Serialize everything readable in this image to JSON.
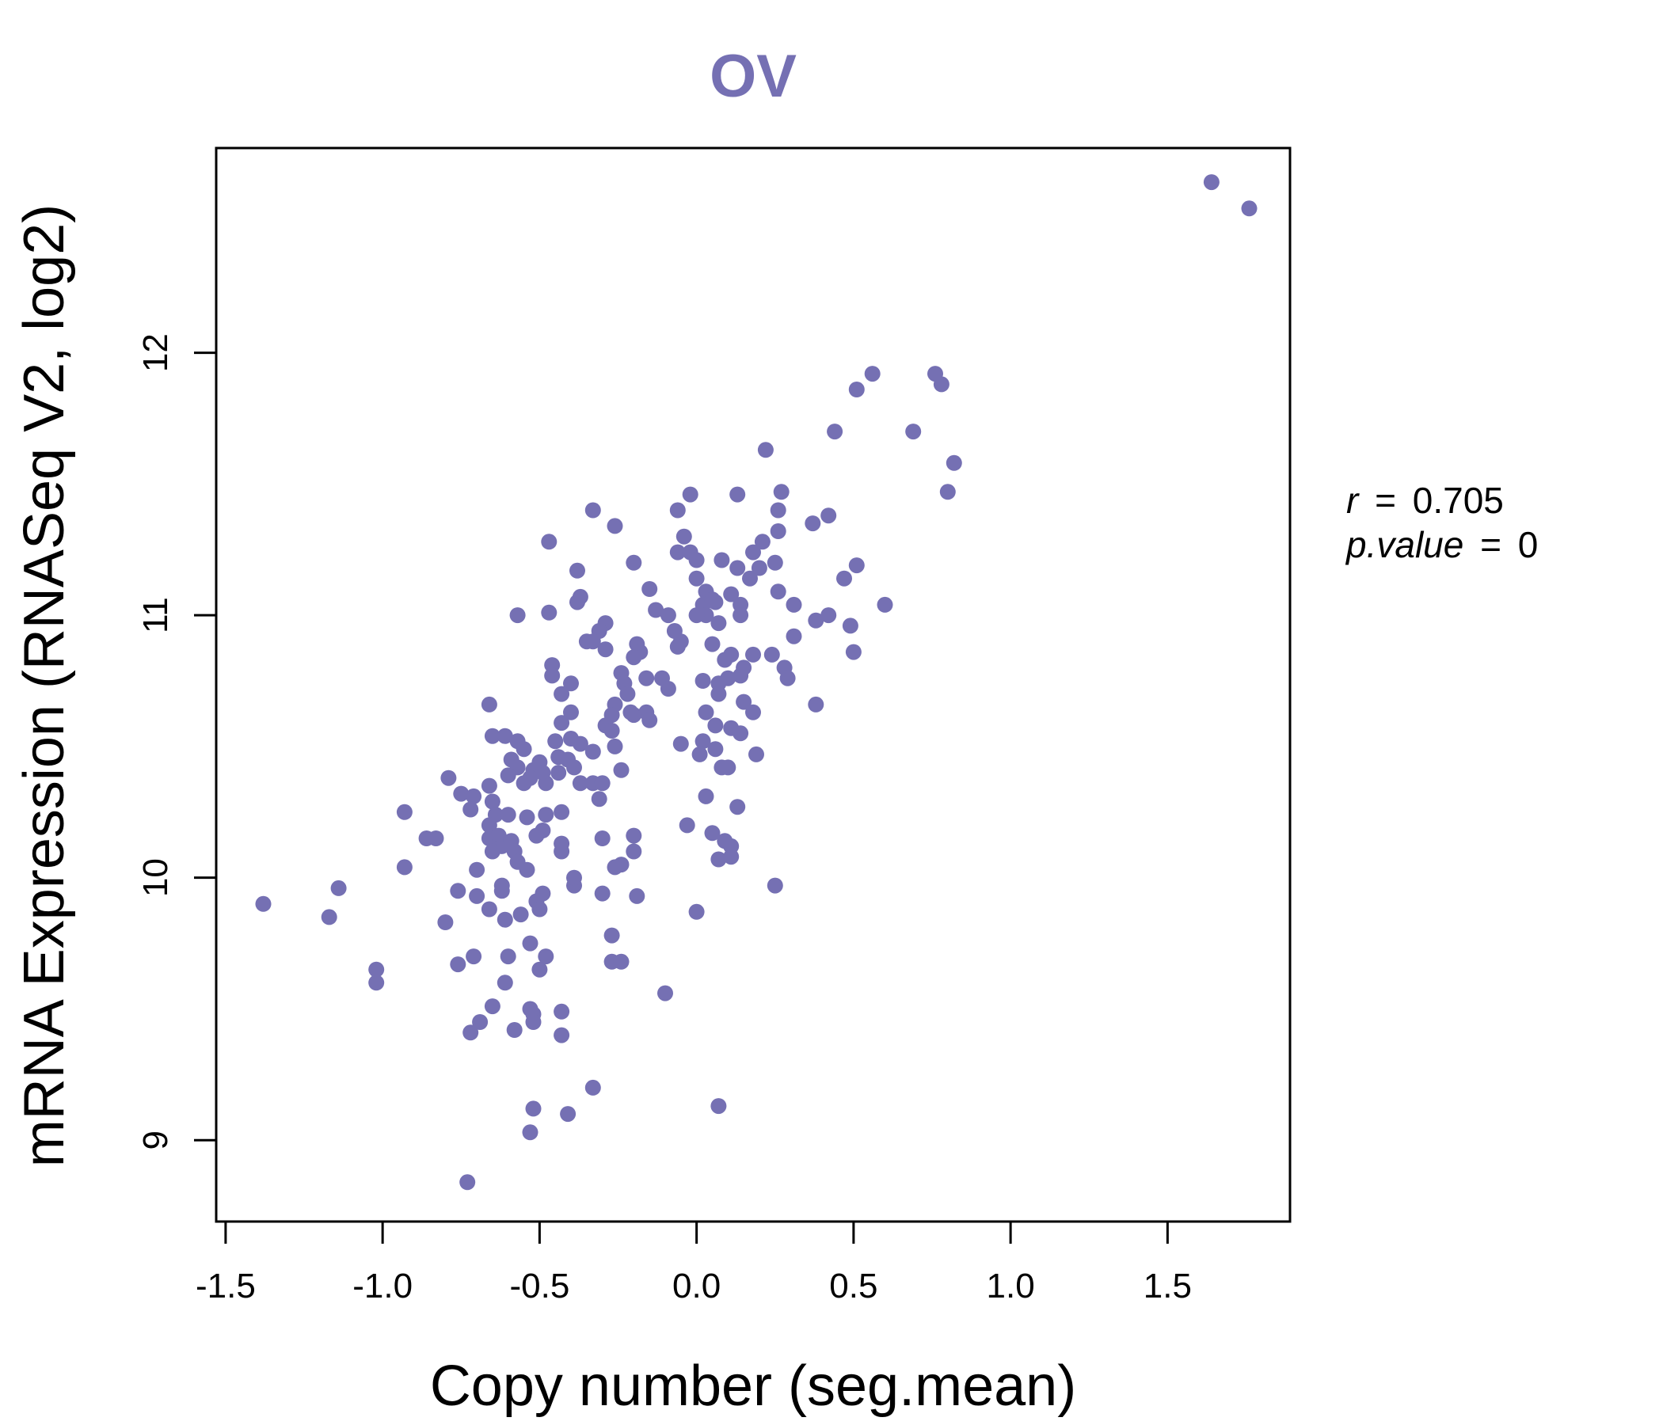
{
  "colors": {
    "accent": "#7570b3",
    "axis": "#000000"
  },
  "chart_data": {
    "type": "scatter",
    "title": "OV",
    "xlabel": "Copy number (seg.mean)",
    "ylabel": "mRNA Expression (RNASeq V2, log2)",
    "xlim": [
      -1.53,
      1.89
    ],
    "ylim": [
      8.69,
      12.78
    ],
    "xticks": [
      -1.5,
      -1.0,
      -0.5,
      0.0,
      0.5,
      1.0,
      1.5
    ],
    "xtick_labels": [
      "-1.5",
      "-1.0",
      "-0.5",
      "0.0",
      "0.5",
      "1.0",
      "1.5"
    ],
    "yticks": [
      9,
      10,
      11,
      12
    ],
    "ytick_labels": [
      "9",
      "10",
      "11",
      "12"
    ],
    "annotation": {
      "r_label": "r",
      "r_value": "0.705",
      "p_label": "p.value",
      "p_value": "0",
      "eq": "="
    },
    "points": [
      [
        1.64,
        12.65
      ],
      [
        1.76,
        12.55
      ],
      [
        0.56,
        11.92
      ],
      [
        0.51,
        11.86
      ],
      [
        0.76,
        11.92
      ],
      [
        0.78,
        11.88
      ],
      [
        0.44,
        11.7
      ],
      [
        0.69,
        11.7
      ],
      [
        0.22,
        11.63
      ],
      [
        0.82,
        11.58
      ],
      [
        0.8,
        11.47
      ],
      [
        0.27,
        11.47
      ],
      [
        0.13,
        11.46
      ],
      [
        0.42,
        11.38
      ],
      [
        0.37,
        11.35
      ],
      [
        0.26,
        11.4
      ],
      [
        0.26,
        11.32
      ],
      [
        0.21,
        11.28
      ],
      [
        0.18,
        11.24
      ],
      [
        0.25,
        11.2
      ],
      [
        0.51,
        11.19
      ],
      [
        0.47,
        11.14
      ],
      [
        0.17,
        11.14
      ],
      [
        0.2,
        11.18
      ],
      [
        0.13,
        11.18
      ],
      [
        0.11,
        11.08
      ],
      [
        0.26,
        11.09
      ],
      [
        0.08,
        11.21
      ],
      [
        0.06,
        11.05
      ],
      [
        0.14,
        11.04
      ],
      [
        0.14,
        11.0
      ],
      [
        0.31,
        11.04
      ],
      [
        0.38,
        10.98
      ],
      [
        0.42,
        11.0
      ],
      [
        0.49,
        10.96
      ],
      [
        0.6,
        11.04
      ],
      [
        0.31,
        10.92
      ],
      [
        0.5,
        10.86
      ],
      [
        -0.02,
        11.46
      ],
      [
        -0.06,
        11.4
      ],
      [
        -0.04,
        11.3
      ],
      [
        -0.06,
        11.24
      ],
      [
        -0.02,
        11.24
      ],
      [
        0.0,
        11.21
      ],
      [
        0.0,
        11.14
      ],
      [
        0.03,
        11.09
      ],
      [
        0.02,
        11.04
      ],
      [
        0.05,
        11.06
      ],
      [
        0.03,
        11.0
      ],
      [
        0.0,
        11.0
      ],
      [
        -0.09,
        11.0
      ],
      [
        -0.07,
        10.94
      ],
      [
        -0.06,
        10.88
      ],
      [
        -0.05,
        10.9
      ],
      [
        0.05,
        10.89
      ],
      [
        0.07,
        10.97
      ],
      [
        -0.33,
        11.4
      ],
      [
        -0.26,
        11.34
      ],
      [
        -0.47,
        11.28
      ],
      [
        -0.2,
        11.2
      ],
      [
        -0.38,
        11.17
      ],
      [
        -0.15,
        11.1
      ],
      [
        -0.37,
        11.07
      ],
      [
        -0.38,
        11.05
      ],
      [
        -0.47,
        11.01
      ],
      [
        -0.57,
        11.0
      ],
      [
        -0.29,
        10.97
      ],
      [
        -0.31,
        10.94
      ],
      [
        -0.35,
        10.9
      ],
      [
        -0.33,
        10.9
      ],
      [
        -0.29,
        10.87
      ],
      [
        -0.19,
        10.89
      ],
      [
        -0.18,
        10.86
      ],
      [
        -0.2,
        10.84
      ],
      [
        -0.13,
        11.02
      ],
      [
        0.11,
        10.85
      ],
      [
        0.09,
        10.83
      ],
      [
        0.15,
        10.8
      ],
      [
        0.18,
        10.85
      ],
      [
        0.24,
        10.85
      ],
      [
        0.28,
        10.8
      ],
      [
        0.29,
        10.76
      ],
      [
        0.14,
        10.77
      ],
      [
        0.1,
        10.76
      ],
      [
        0.07,
        10.74
      ],
      [
        0.07,
        10.7
      ],
      [
        0.02,
        10.75
      ],
      [
        0.15,
        10.67
      ],
      [
        0.18,
        10.63
      ],
      [
        0.03,
        10.63
      ],
      [
        0.38,
        10.66
      ],
      [
        -0.24,
        10.78
      ],
      [
        -0.23,
        10.74
      ],
      [
        -0.22,
        10.7
      ],
      [
        -0.16,
        10.76
      ],
      [
        -0.11,
        10.76
      ],
      [
        -0.09,
        10.72
      ],
      [
        -0.16,
        10.63
      ],
      [
        -0.21,
        10.63
      ],
      [
        -0.15,
        10.6
      ],
      [
        -0.26,
        10.66
      ],
      [
        -0.27,
        10.62
      ],
      [
        -0.29,
        10.58
      ],
      [
        -0.27,
        10.56
      ],
      [
        -0.26,
        10.5
      ],
      [
        -0.24,
        10.41
      ],
      [
        -0.2,
        10.62
      ],
      [
        -0.46,
        10.81
      ],
      [
        -0.46,
        10.77
      ],
      [
        -0.4,
        10.74
      ],
      [
        -0.43,
        10.7
      ],
      [
        -0.4,
        10.63
      ],
      [
        -0.43,
        10.59
      ],
      [
        -0.45,
        10.52
      ],
      [
        -0.4,
        10.53
      ],
      [
        -0.37,
        10.51
      ],
      [
        -0.33,
        10.48
      ],
      [
        -0.41,
        10.45
      ],
      [
        -0.44,
        10.46
      ],
      [
        -0.44,
        10.4
      ],
      [
        -0.39,
        10.42
      ],
      [
        -0.37,
        10.36
      ],
      [
        -0.33,
        10.36
      ],
      [
        -0.3,
        10.36
      ],
      [
        -0.31,
        10.3
      ],
      [
        -0.05,
        10.51
      ],
      [
        0.02,
        10.52
      ],
      [
        0.06,
        10.58
      ],
      [
        0.11,
        10.57
      ],
      [
        0.14,
        10.55
      ],
      [
        0.06,
        10.49
      ],
      [
        0.01,
        10.47
      ],
      [
        0.08,
        10.42
      ],
      [
        0.1,
        10.42
      ],
      [
        0.19,
        10.47
      ],
      [
        0.03,
        10.31
      ],
      [
        0.13,
        10.27
      ],
      [
        -0.03,
        10.2
      ],
      [
        0.05,
        10.17
      ],
      [
        0.09,
        10.14
      ],
      [
        0.11,
        10.12
      ],
      [
        0.11,
        10.08
      ],
      [
        0.07,
        10.07
      ],
      [
        0.25,
        9.97
      ],
      [
        0.0,
        9.87
      ],
      [
        -0.1,
        9.56
      ],
      [
        0.07,
        9.13
      ],
      [
        -0.66,
        10.66
      ],
      [
        -0.65,
        10.54
      ],
      [
        -0.61,
        10.54
      ],
      [
        -0.57,
        10.52
      ],
      [
        -0.55,
        10.49
      ],
      [
        -0.59,
        10.45
      ],
      [
        -0.57,
        10.42
      ],
      [
        -0.52,
        10.41
      ],
      [
        -0.5,
        10.44
      ],
      [
        -0.49,
        10.4
      ],
      [
        -0.53,
        10.38
      ],
      [
        -0.55,
        10.36
      ],
      [
        -0.48,
        10.36
      ],
      [
        -0.6,
        10.39
      ],
      [
        -0.66,
        10.35
      ],
      [
        -0.71,
        10.31
      ],
      [
        -0.75,
        10.32
      ],
      [
        -0.79,
        10.38
      ],
      [
        -0.72,
        10.26
      ],
      [
        -0.65,
        10.29
      ],
      [
        -0.64,
        10.24
      ],
      [
        -0.6,
        10.24
      ],
      [
        -0.54,
        10.23
      ],
      [
        -0.48,
        10.24
      ],
      [
        -0.49,
        10.18
      ],
      [
        -0.51,
        10.16
      ],
      [
        -0.43,
        10.25
      ],
      [
        -0.66,
        10.2
      ],
      [
        -0.66,
        10.15
      ],
      [
        -0.63,
        10.16
      ],
      [
        -0.62,
        10.12
      ],
      [
        -0.59,
        10.14
      ],
      [
        -0.58,
        10.1
      ],
      [
        -0.57,
        10.06
      ],
      [
        -0.54,
        10.03
      ],
      [
        -0.65,
        10.1
      ],
      [
        -0.7,
        10.03
      ],
      [
        -0.62,
        9.97
      ],
      [
        -0.62,
        9.95
      ],
      [
        -0.76,
        9.95
      ],
      [
        -0.7,
        9.93
      ],
      [
        -0.66,
        9.88
      ],
      [
        -0.61,
        9.84
      ],
      [
        -0.56,
        9.86
      ],
      [
        -0.51,
        9.91
      ],
      [
        -0.5,
        9.88
      ],
      [
        -0.49,
        9.94
      ],
      [
        -0.43,
        10.1
      ],
      [
        -0.43,
        10.13
      ],
      [
        -0.39,
        9.97
      ],
      [
        -0.39,
        10.0
      ],
      [
        -0.3,
        10.15
      ],
      [
        -0.2,
        10.16
      ],
      [
        -0.2,
        10.1
      ],
      [
        -0.24,
        10.05
      ],
      [
        -0.26,
        10.04
      ],
      [
        -0.3,
        9.94
      ],
      [
        -0.19,
        9.93
      ],
      [
        -0.27,
        9.78
      ],
      [
        -0.27,
        9.68
      ],
      [
        -0.24,
        9.68
      ],
      [
        -0.93,
        10.25
      ],
      [
        -0.86,
        10.15
      ],
      [
        -0.83,
        10.15
      ],
      [
        -0.93,
        10.04
      ],
      [
        -0.8,
        9.83
      ],
      [
        -0.76,
        9.67
      ],
      [
        -0.71,
        9.7
      ],
      [
        -0.6,
        9.7
      ],
      [
        -0.53,
        9.75
      ],
      [
        -0.48,
        9.7
      ],
      [
        -0.5,
        9.65
      ],
      [
        -0.61,
        9.6
      ],
      [
        -0.65,
        9.51
      ],
      [
        -0.53,
        9.5
      ],
      [
        -0.52,
        9.48
      ],
      [
        -0.52,
        9.45
      ],
      [
        -0.69,
        9.45
      ],
      [
        -0.72,
        9.41
      ],
      [
        -0.58,
        9.42
      ],
      [
        -0.43,
        9.49
      ],
      [
        -0.43,
        9.4
      ],
      [
        -0.33,
        9.2
      ],
      [
        -0.41,
        9.1
      ],
      [
        -0.52,
        9.12
      ],
      [
        -0.53,
        9.03
      ],
      [
        -0.73,
        8.84
      ],
      [
        -1.38,
        9.9
      ],
      [
        -1.17,
        9.85
      ],
      [
        -1.14,
        9.96
      ],
      [
        -1.02,
        9.65
      ],
      [
        -1.02,
        9.6
      ]
    ]
  }
}
